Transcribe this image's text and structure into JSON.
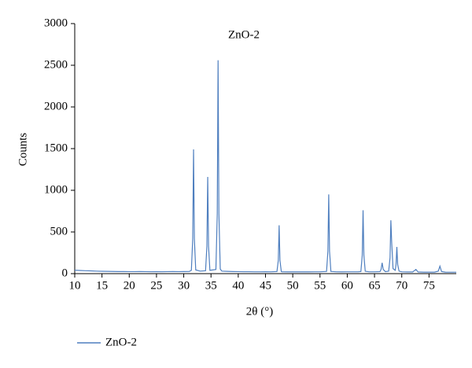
{
  "chart_data": {
    "type": "line",
    "title": "ZnO-2",
    "x_label": "2θ (°)",
    "y_label": "Counts",
    "xlim": [
      10,
      80
    ],
    "xticks": [
      10,
      15,
      20,
      25,
      30,
      35,
      40,
      45,
      50,
      55,
      60,
      65,
      70,
      75
    ],
    "ylim": [
      0,
      3000
    ],
    "yticks": [
      0,
      500,
      1000,
      1500,
      2000,
      2500,
      3000
    ],
    "grid": false,
    "legend": "bottom-left",
    "x": [
      10,
      11,
      12,
      13,
      14,
      15,
      16,
      17,
      18,
      19,
      20,
      21,
      22,
      23,
      24,
      25,
      26,
      27,
      28,
      29,
      30,
      31,
      31.4,
      31.65,
      31.8,
      31.95,
      32.2,
      33,
      34.0,
      34.25,
      34.4,
      34.55,
      34.8,
      35.9,
      36.15,
      36.3,
      36.45,
      36.7,
      37,
      38,
      39,
      40,
      41,
      42,
      43,
      44,
      45,
      46,
      47.1,
      47.35,
      47.5,
      47.65,
      47.9,
      48,
      49,
      50,
      51,
      52,
      53,
      54,
      55,
      56.2,
      56.45,
      56.6,
      56.75,
      57.0,
      58,
      59,
      60,
      61,
      62,
      62.5,
      62.75,
      62.9,
      63.05,
      63.3,
      64,
      65,
      66,
      66.2,
      66.4,
      66.6,
      67,
      67.6,
      67.85,
      68.0,
      68.15,
      68.4,
      68.8,
      68.95,
      69.1,
      69.25,
      69.5,
      70,
      71,
      72,
      72.6,
      73,
      74,
      75,
      76,
      76.7,
      77.0,
      77.3,
      78,
      79,
      80
    ],
    "series": [
      {
        "name": "ZnO-2",
        "color": "#4f7fbf",
        "values": [
          42,
          38,
          35,
          33,
          30,
          28,
          27,
          26,
          25,
          25,
          24,
          24,
          25,
          24,
          23,
          24,
          23,
          24,
          25,
          24,
          25,
          26,
          40,
          420,
          1490,
          420,
          45,
          30,
          35,
          330,
          1160,
          330,
          40,
          50,
          720,
          2560,
          720,
          55,
          30,
          27,
          25,
          24,
          23,
          23,
          22,
          22,
          23,
          22,
          25,
          160,
          580,
          160,
          25,
          22,
          21,
          22,
          21,
          22,
          21,
          22,
          22,
          26,
          270,
          950,
          270,
          26,
          22,
          21,
          22,
          22,
          22,
          25,
          220,
          760,
          220,
          28,
          22,
          22,
          24,
          50,
          130,
          50,
          24,
          30,
          190,
          640,
          380,
          60,
          40,
          110,
          320,
          110,
          30,
          22,
          20,
          20,
          50,
          20,
          18,
          18,
          18,
          30,
          90,
          25,
          18,
          17,
          17
        ]
      }
    ]
  }
}
